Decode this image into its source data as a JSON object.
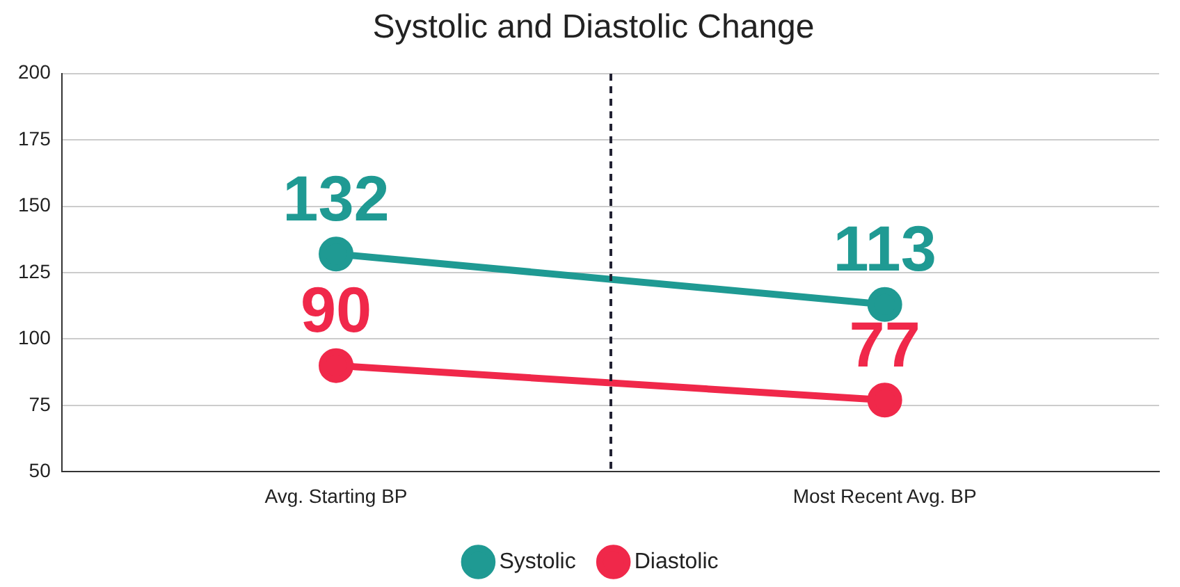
{
  "chart_data": {
    "type": "line",
    "title": "Systolic and Diastolic Change",
    "categories": [
      "Avg. Starting BP",
      "Most Recent Avg. BP"
    ],
    "series": [
      {
        "name": "Systolic",
        "color": "#1f9a93",
        "values": [
          132,
          113
        ]
      },
      {
        "name": "Diastolic",
        "color": "#f0284a",
        "values": [
          90,
          77
        ]
      }
    ],
    "ylim": [
      50,
      200
    ],
    "yticks": [
      50,
      75,
      100,
      125,
      150,
      175,
      200
    ],
    "grid": "y",
    "legend": "bottom",
    "marker": "circle",
    "line_style": "solid",
    "data_labels": true
  }
}
